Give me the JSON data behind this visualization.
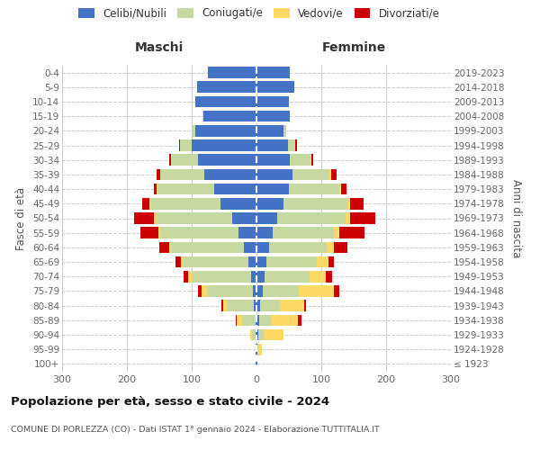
{
  "age_groups": [
    "100+",
    "95-99",
    "90-94",
    "85-89",
    "80-84",
    "75-79",
    "70-74",
    "65-69",
    "60-64",
    "55-59",
    "50-54",
    "45-49",
    "40-44",
    "35-39",
    "30-34",
    "25-29",
    "20-24",
    "15-19",
    "10-14",
    "5-9",
    "0-4"
  ],
  "birth_years": [
    "≤ 1923",
    "1924-1928",
    "1929-1933",
    "1934-1938",
    "1939-1943",
    "1944-1948",
    "1949-1953",
    "1954-1958",
    "1959-1963",
    "1964-1968",
    "1969-1973",
    "1974-1978",
    "1979-1983",
    "1984-1988",
    "1989-1993",
    "1994-1998",
    "1999-2003",
    "2004-2008",
    "2009-2013",
    "2014-2018",
    "2019-2023"
  ],
  "maschi": {
    "celibe": [
      1,
      1,
      2,
      2,
      4,
      5,
      8,
      12,
      20,
      28,
      38,
      55,
      65,
      80,
      90,
      100,
      95,
      82,
      95,
      92,
      75
    ],
    "coniugato": [
      0,
      1,
      5,
      20,
      42,
      72,
      92,
      100,
      112,
      120,
      118,
      108,
      88,
      68,
      42,
      18,
      4,
      1,
      0,
      0,
      0
    ],
    "vedovo": [
      0,
      0,
      3,
      8,
      5,
      8,
      5,
      5,
      3,
      3,
      3,
      2,
      1,
      1,
      0,
      0,
      0,
      0,
      0,
      0,
      0
    ],
    "divorziato": [
      0,
      0,
      0,
      2,
      3,
      5,
      8,
      8,
      15,
      28,
      30,
      12,
      5,
      5,
      3,
      2,
      0,
      0,
      0,
      0,
      0
    ]
  },
  "femmine": {
    "nubile": [
      1,
      1,
      3,
      4,
      6,
      10,
      12,
      15,
      20,
      25,
      32,
      42,
      50,
      55,
      52,
      48,
      42,
      52,
      50,
      58,
      52
    ],
    "coniugata": [
      0,
      2,
      8,
      18,
      30,
      55,
      70,
      78,
      88,
      95,
      105,
      98,
      78,
      58,
      32,
      12,
      4,
      0,
      0,
      0,
      0
    ],
    "vedova": [
      1,
      5,
      30,
      42,
      38,
      55,
      25,
      18,
      12,
      8,
      8,
      5,
      3,
      2,
      1,
      0,
      0,
      0,
      0,
      0,
      0
    ],
    "divorziata": [
      0,
      0,
      0,
      5,
      3,
      8,
      10,
      8,
      20,
      38,
      38,
      20,
      8,
      8,
      3,
      2,
      0,
      0,
      0,
      0,
      0
    ]
  },
  "colors": {
    "celibe": "#4472C4",
    "coniugato": "#c5d9a0",
    "vedovo": "#FFD966",
    "divorziato": "#CC0000"
  },
  "title": "Popolazione per età, sesso e stato civile - 2024",
  "subtitle": "COMUNE DI PORLEZZA (CO) - Dati ISTAT 1° gennaio 2024 - Elaborazione TUTTITALIA.IT",
  "xlabel_maschi": "Maschi",
  "xlabel_femmine": "Femmine",
  "ylabel_left": "Fasce di età",
  "ylabel_right": "Anni di nascita",
  "xlim": 300,
  "bar_height": 0.78,
  "bg_color": "#ffffff",
  "grid_color": "#cccccc"
}
